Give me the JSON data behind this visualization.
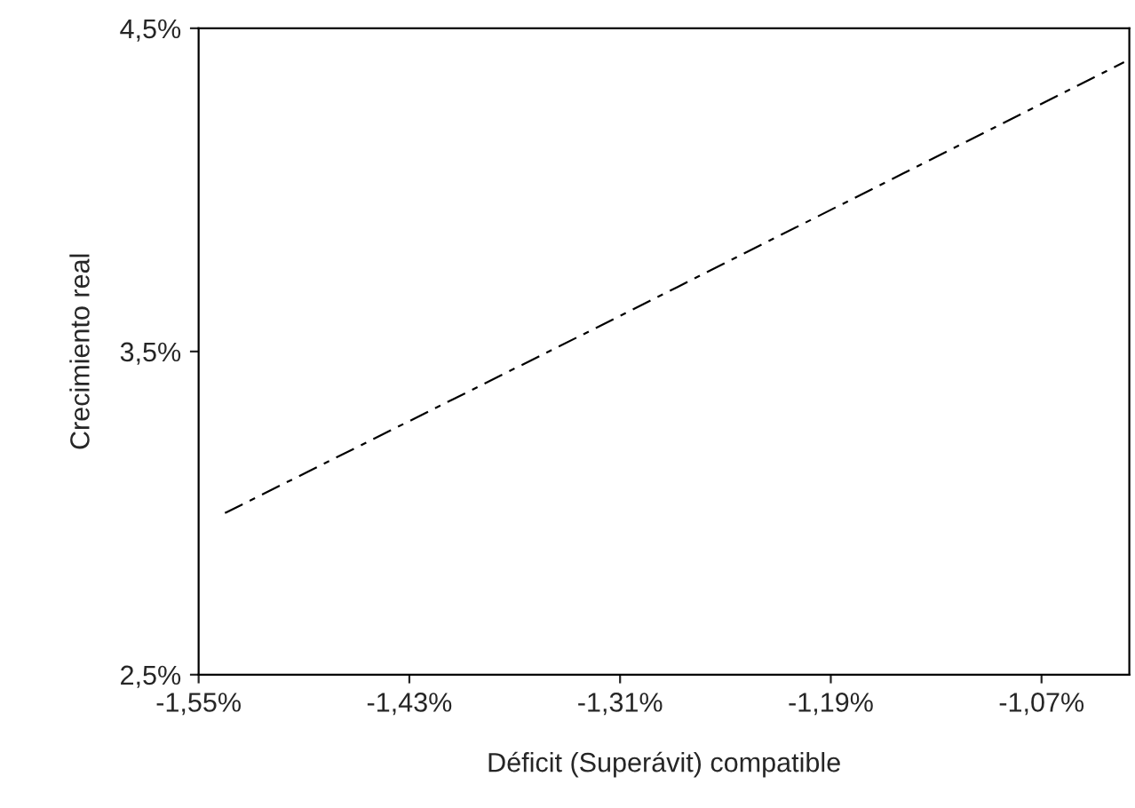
{
  "chart_data": {
    "type": "line",
    "xlabel": "Déficit (Superávit) compatible",
    "ylabel": "Crecimiento real",
    "series": [
      {
        "color": "#000000",
        "x": [
          -1.535,
          -1.31,
          -1.023
        ],
        "values": [
          3.0,
          3.61,
          4.395
        ]
      }
    ],
    "xlim": [
      -1.55,
      -1.02
    ],
    "ylim": [
      2.5,
      4.5
    ],
    "xticks": [
      {
        "value": -1.55,
        "label": "-1,55%"
      },
      {
        "value": -1.43,
        "label": "-1,43%"
      },
      {
        "value": -1.31,
        "label": "-1,31%"
      },
      {
        "value": -1.19,
        "label": "-1,19%"
      },
      {
        "value": -1.07,
        "label": "-1,07%"
      }
    ],
    "yticks": [
      {
        "value": 2.5,
        "label": "2,5%"
      },
      {
        "value": 3.5,
        "label": "3,5%"
      },
      {
        "value": 4.5,
        "label": "4,5%"
      }
    ],
    "grid": false,
    "legend": false,
    "line_style": "dashed",
    "marker": "none"
  }
}
